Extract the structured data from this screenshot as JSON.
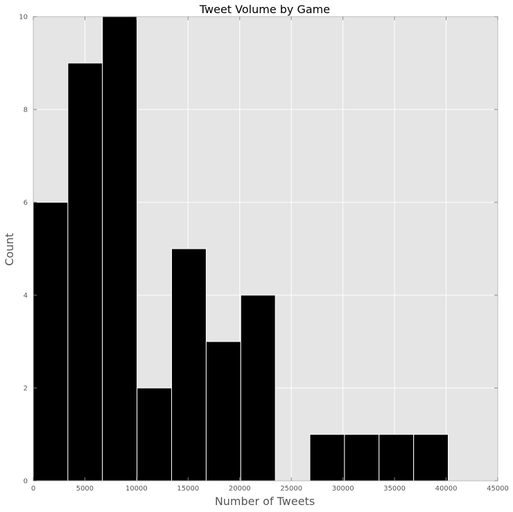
{
  "chart_data": {
    "type": "bar",
    "title": "Tweet Volume by Game",
    "xlabel": "Number of Tweets",
    "ylabel": "Count",
    "xlim": [
      0,
      45000
    ],
    "ylim": [
      0,
      10
    ],
    "xticks": [
      "0",
      "5000",
      "10000",
      "15000",
      "20000",
      "25000",
      "30000",
      "35000",
      "40000",
      "45000"
    ],
    "yticks": [
      "0",
      "2",
      "4",
      "6",
      "8",
      "10"
    ],
    "grid": true,
    "bar_color": "#000000",
    "background_color": "#e5e5e5",
    "bins": [
      {
        "start": 0,
        "end": 3350,
        "count": 6
      },
      {
        "start": 3350,
        "end": 6700,
        "count": 9
      },
      {
        "start": 6700,
        "end": 10050,
        "count": 10
      },
      {
        "start": 10050,
        "end": 13400,
        "count": 2
      },
      {
        "start": 13400,
        "end": 16750,
        "count": 5
      },
      {
        "start": 16750,
        "end": 20100,
        "count": 3
      },
      {
        "start": 20100,
        "end": 23450,
        "count": 4
      },
      {
        "start": 23450,
        "end": 26800,
        "count": 0
      },
      {
        "start": 26800,
        "end": 30150,
        "count": 1
      },
      {
        "start": 30150,
        "end": 33500,
        "count": 1
      },
      {
        "start": 33500,
        "end": 36850,
        "count": 1
      },
      {
        "start": 36850,
        "end": 40200,
        "count": 1
      }
    ]
  }
}
